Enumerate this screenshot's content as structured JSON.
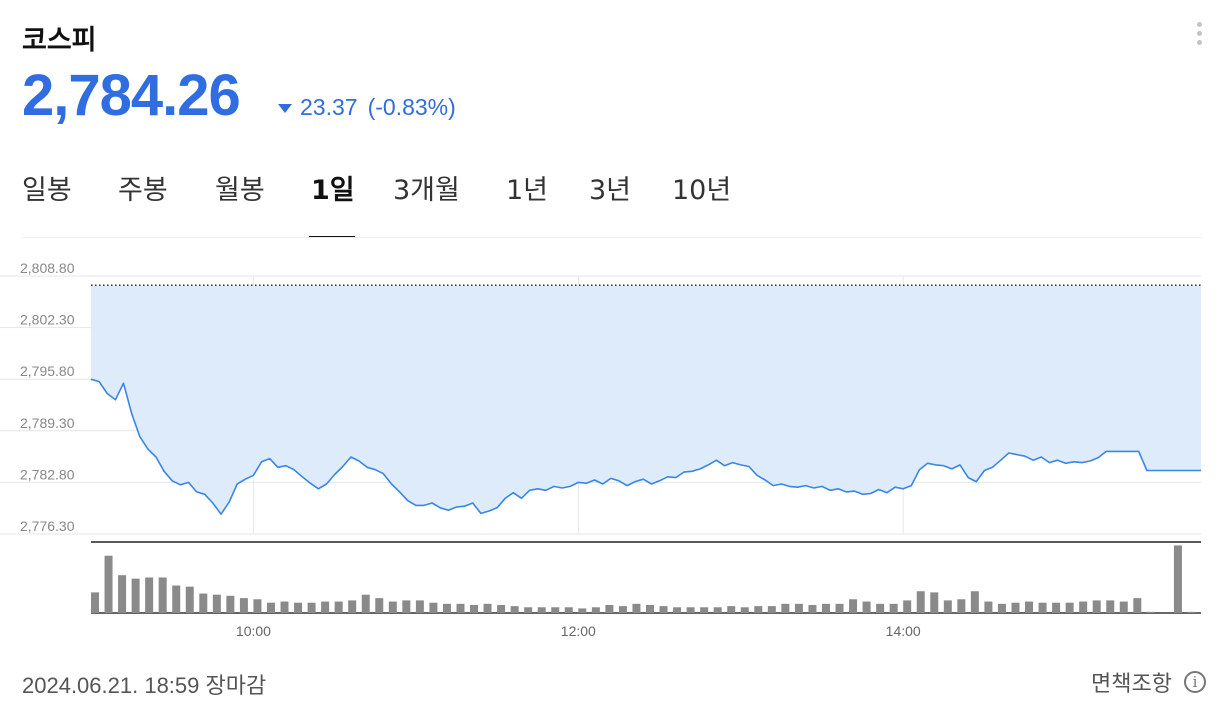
{
  "header": {
    "title": "코스피",
    "price": "2,784.26",
    "change": "23.37",
    "change_pct": "(-0.83%)"
  },
  "colors": {
    "down": "#2f6de1",
    "line": "#3a86e6",
    "fill": "#dbeafb",
    "bar": "#8a8a8a"
  },
  "icons": {
    "more": "more-vertical-icon",
    "change": "triangle-down-icon",
    "info": "info-circle-icon"
  },
  "tabs": [
    "일봉",
    "주봉",
    "월봉",
    "1일",
    "3개월",
    "1년",
    "3년",
    "10년"
  ],
  "active_tab": "1일",
  "footer": {
    "timestamp": "2024.06.21. 18:59 장마감",
    "disclaimer": "면책조항",
    "info_glyph": "i"
  },
  "chart_data": {
    "type": "area",
    "title": "",
    "xlabel": "",
    "ylabel": "",
    "x_ticks": [
      "10:00",
      "12:00",
      "14:00"
    ],
    "y_ticks": [
      "2,808.80",
      "2,802.30",
      "2,795.80",
      "2,789.30",
      "2,782.80",
      "2,776.30"
    ],
    "ylim": [
      2776.3,
      2808.8
    ],
    "xlim": [
      "09:00",
      "15:50"
    ],
    "previous_close": 2807.63,
    "grid": true,
    "series": [
      {
        "values": [
          [
            "09:00",
            2795.8
          ],
          [
            "09:03",
            2795.5
          ],
          [
            "09:06",
            2794.0
          ],
          [
            "09:09",
            2793.2
          ],
          [
            "09:12",
            2795.3
          ],
          [
            "09:15",
            2791.5
          ],
          [
            "09:18",
            2788.6
          ],
          [
            "09:21",
            2787.0
          ],
          [
            "09:24",
            2786.0
          ],
          [
            "09:27",
            2784.2
          ],
          [
            "09:30",
            2783.0
          ],
          [
            "09:33",
            2782.5
          ],
          [
            "09:36",
            2782.8
          ],
          [
            "09:39",
            2781.6
          ],
          [
            "09:42",
            2781.3
          ],
          [
            "09:45",
            2780.2
          ],
          [
            "09:48",
            2778.8
          ],
          [
            "09:51",
            2780.3
          ],
          [
            "09:54",
            2782.6
          ],
          [
            "09:57",
            2783.2
          ],
          [
            "10:00",
            2783.7
          ],
          [
            "10:03",
            2785.4
          ],
          [
            "10:06",
            2785.8
          ],
          [
            "10:09",
            2784.7
          ],
          [
            "10:12",
            2784.9
          ],
          [
            "10:15",
            2784.4
          ],
          [
            "10:18",
            2783.5
          ],
          [
            "10:21",
            2782.7
          ],
          [
            "10:24",
            2782.0
          ],
          [
            "10:27",
            2782.6
          ],
          [
            "10:30",
            2783.8
          ],
          [
            "10:33",
            2784.8
          ],
          [
            "10:36",
            2786.0
          ],
          [
            "10:39",
            2785.5
          ],
          [
            "10:42",
            2784.7
          ],
          [
            "10:45",
            2784.4
          ],
          [
            "10:48",
            2783.9
          ],
          [
            "10:51",
            2782.6
          ],
          [
            "10:54",
            2781.6
          ],
          [
            "10:57",
            2780.5
          ],
          [
            "11:00",
            2779.9
          ],
          [
            "11:03",
            2779.9
          ],
          [
            "11:06",
            2780.2
          ],
          [
            "11:09",
            2779.6
          ],
          [
            "11:12",
            2779.3
          ],
          [
            "11:15",
            2779.7
          ],
          [
            "11:18",
            2779.8
          ],
          [
            "11:21",
            2780.2
          ],
          [
            "11:24",
            2778.9
          ],
          [
            "11:27",
            2779.2
          ],
          [
            "11:30",
            2779.6
          ],
          [
            "11:33",
            2780.8
          ],
          [
            "11:36",
            2781.5
          ],
          [
            "11:39",
            2780.8
          ],
          [
            "11:42",
            2781.8
          ],
          [
            "11:45",
            2782.0
          ],
          [
            "11:48",
            2781.8
          ],
          [
            "11:51",
            2782.3
          ],
          [
            "11:54",
            2782.1
          ],
          [
            "11:57",
            2782.3
          ],
          [
            "12:00",
            2782.8
          ],
          [
            "12:03",
            2782.7
          ],
          [
            "12:06",
            2783.1
          ],
          [
            "12:09",
            2782.6
          ],
          [
            "12:12",
            2783.3
          ],
          [
            "12:15",
            2783.0
          ],
          [
            "12:18",
            2782.4
          ],
          [
            "12:21",
            2782.9
          ],
          [
            "12:24",
            2783.2
          ],
          [
            "12:27",
            2782.6
          ],
          [
            "12:30",
            2783.0
          ],
          [
            "12:33",
            2783.5
          ],
          [
            "12:36",
            2783.4
          ],
          [
            "12:39",
            2784.1
          ],
          [
            "12:42",
            2784.2
          ],
          [
            "12:45",
            2784.5
          ],
          [
            "12:48",
            2785.0
          ],
          [
            "12:51",
            2785.6
          ],
          [
            "12:54",
            2784.9
          ],
          [
            "12:57",
            2785.3
          ],
          [
            "13:00",
            2785.0
          ],
          [
            "13:03",
            2784.8
          ],
          [
            "13:06",
            2783.7
          ],
          [
            "13:09",
            2783.1
          ],
          [
            "13:12",
            2782.4
          ],
          [
            "13:15",
            2782.6
          ],
          [
            "13:18",
            2782.3
          ],
          [
            "13:21",
            2782.2
          ],
          [
            "13:24",
            2782.4
          ],
          [
            "13:27",
            2782.1
          ],
          [
            "13:30",
            2782.3
          ],
          [
            "13:33",
            2781.8
          ],
          [
            "13:36",
            2782.0
          ],
          [
            "13:39",
            2781.6
          ],
          [
            "13:42",
            2781.7
          ],
          [
            "13:45",
            2781.3
          ],
          [
            "13:48",
            2781.4
          ],
          [
            "13:51",
            2781.9
          ],
          [
            "13:54",
            2781.5
          ],
          [
            "13:57",
            2782.2
          ],
          [
            "14:00",
            2782.0
          ],
          [
            "14:03",
            2782.4
          ],
          [
            "14:06",
            2784.4
          ],
          [
            "14:09",
            2785.2
          ],
          [
            "14:12",
            2785.0
          ],
          [
            "14:15",
            2784.9
          ],
          [
            "14:18",
            2784.5
          ],
          [
            "14:21",
            2785.0
          ],
          [
            "14:24",
            2783.4
          ],
          [
            "14:27",
            2782.9
          ],
          [
            "14:30",
            2784.3
          ],
          [
            "14:33",
            2784.7
          ],
          [
            "14:36",
            2785.6
          ],
          [
            "14:39",
            2786.5
          ],
          [
            "14:42",
            2786.3
          ],
          [
            "14:45",
            2786.1
          ],
          [
            "14:48",
            2785.6
          ],
          [
            "14:51",
            2786.0
          ],
          [
            "14:54",
            2785.3
          ],
          [
            "14:57",
            2785.6
          ],
          [
            "15:00",
            2785.2
          ],
          [
            "15:03",
            2785.4
          ],
          [
            "15:06",
            2785.3
          ],
          [
            "15:09",
            2785.5
          ],
          [
            "15:12",
            2785.9
          ],
          [
            "15:15",
            2786.7
          ],
          [
            "15:18",
            2786.7
          ],
          [
            "15:21",
            2786.7
          ],
          [
            "15:24",
            2786.7
          ],
          [
            "15:27",
            2786.7
          ],
          [
            "15:30",
            2784.3
          ],
          [
            "15:33",
            2784.3
          ],
          [
            "15:36",
            2784.3
          ],
          [
            "15:39",
            2784.3
          ],
          [
            "15:42",
            2784.3
          ],
          [
            "15:45",
            2784.3
          ],
          [
            "15:48",
            2784.3
          ],
          [
            "15:50",
            2784.3
          ]
        ]
      }
    ],
    "volume": {
      "ylim": [
        0,
        62
      ],
      "values": [
        [
          "09:00",
          18
        ],
        [
          "09:05",
          50
        ],
        [
          "09:10",
          33
        ],
        [
          "09:15",
          30
        ],
        [
          "09:20",
          31
        ],
        [
          "09:25",
          31
        ],
        [
          "09:30",
          24
        ],
        [
          "09:35",
          23
        ],
        [
          "09:40",
          17
        ],
        [
          "09:45",
          16
        ],
        [
          "09:50",
          15
        ],
        [
          "09:55",
          13
        ],
        [
          "10:00",
          12
        ],
        [
          "10:05",
          9
        ],
        [
          "10:10",
          10
        ],
        [
          "10:15",
          9
        ],
        [
          "10:20",
          9
        ],
        [
          "10:25",
          10
        ],
        [
          "10:30",
          10
        ],
        [
          "10:35",
          11
        ],
        [
          "10:40",
          16
        ],
        [
          "10:45",
          13
        ],
        [
          "10:50",
          10
        ],
        [
          "10:55",
          11
        ],
        [
          "11:00",
          11
        ],
        [
          "11:05",
          9
        ],
        [
          "11:10",
          8
        ],
        [
          "11:15",
          8
        ],
        [
          "11:20",
          7
        ],
        [
          "11:25",
          8
        ],
        [
          "11:30",
          7
        ],
        [
          "11:35",
          6
        ],
        [
          "11:40",
          5
        ],
        [
          "11:45",
          5
        ],
        [
          "11:50",
          5
        ],
        [
          "11:55",
          5
        ],
        [
          "12:00",
          4
        ],
        [
          "12:05",
          5
        ],
        [
          "12:10",
          7
        ],
        [
          "12:15",
          6
        ],
        [
          "12:20",
          8
        ],
        [
          "12:25",
          7
        ],
        [
          "12:30",
          6
        ],
        [
          "12:35",
          5
        ],
        [
          "12:40",
          5
        ],
        [
          "12:45",
          5
        ],
        [
          "12:50",
          5
        ],
        [
          "12:55",
          6
        ],
        [
          "13:00",
          5
        ],
        [
          "13:05",
          6
        ],
        [
          "13:10",
          6
        ],
        [
          "13:15",
          8
        ],
        [
          "13:20",
          8
        ],
        [
          "13:25",
          7
        ],
        [
          "13:30",
          8
        ],
        [
          "13:35",
          8
        ],
        [
          "13:40",
          12
        ],
        [
          "13:45",
          10
        ],
        [
          "13:50",
          8
        ],
        [
          "13:55",
          8
        ],
        [
          "14:00",
          11
        ],
        [
          "14:05",
          19
        ],
        [
          "14:10",
          18
        ],
        [
          "14:15",
          11
        ],
        [
          "14:20",
          12
        ],
        [
          "14:25",
          19
        ],
        [
          "14:30",
          10
        ],
        [
          "14:35",
          8
        ],
        [
          "14:40",
          9
        ],
        [
          "14:45",
          10
        ],
        [
          "14:50",
          9
        ],
        [
          "14:55",
          9
        ],
        [
          "15:00",
          9
        ],
        [
          "15:05",
          10
        ],
        [
          "15:10",
          11
        ],
        [
          "15:15",
          11
        ],
        [
          "15:20",
          10
        ],
        [
          "15:25",
          13
        ],
        [
          "15:30",
          1
        ],
        [
          "15:40",
          59
        ],
        [
          "15:45",
          1
        ]
      ]
    }
  }
}
